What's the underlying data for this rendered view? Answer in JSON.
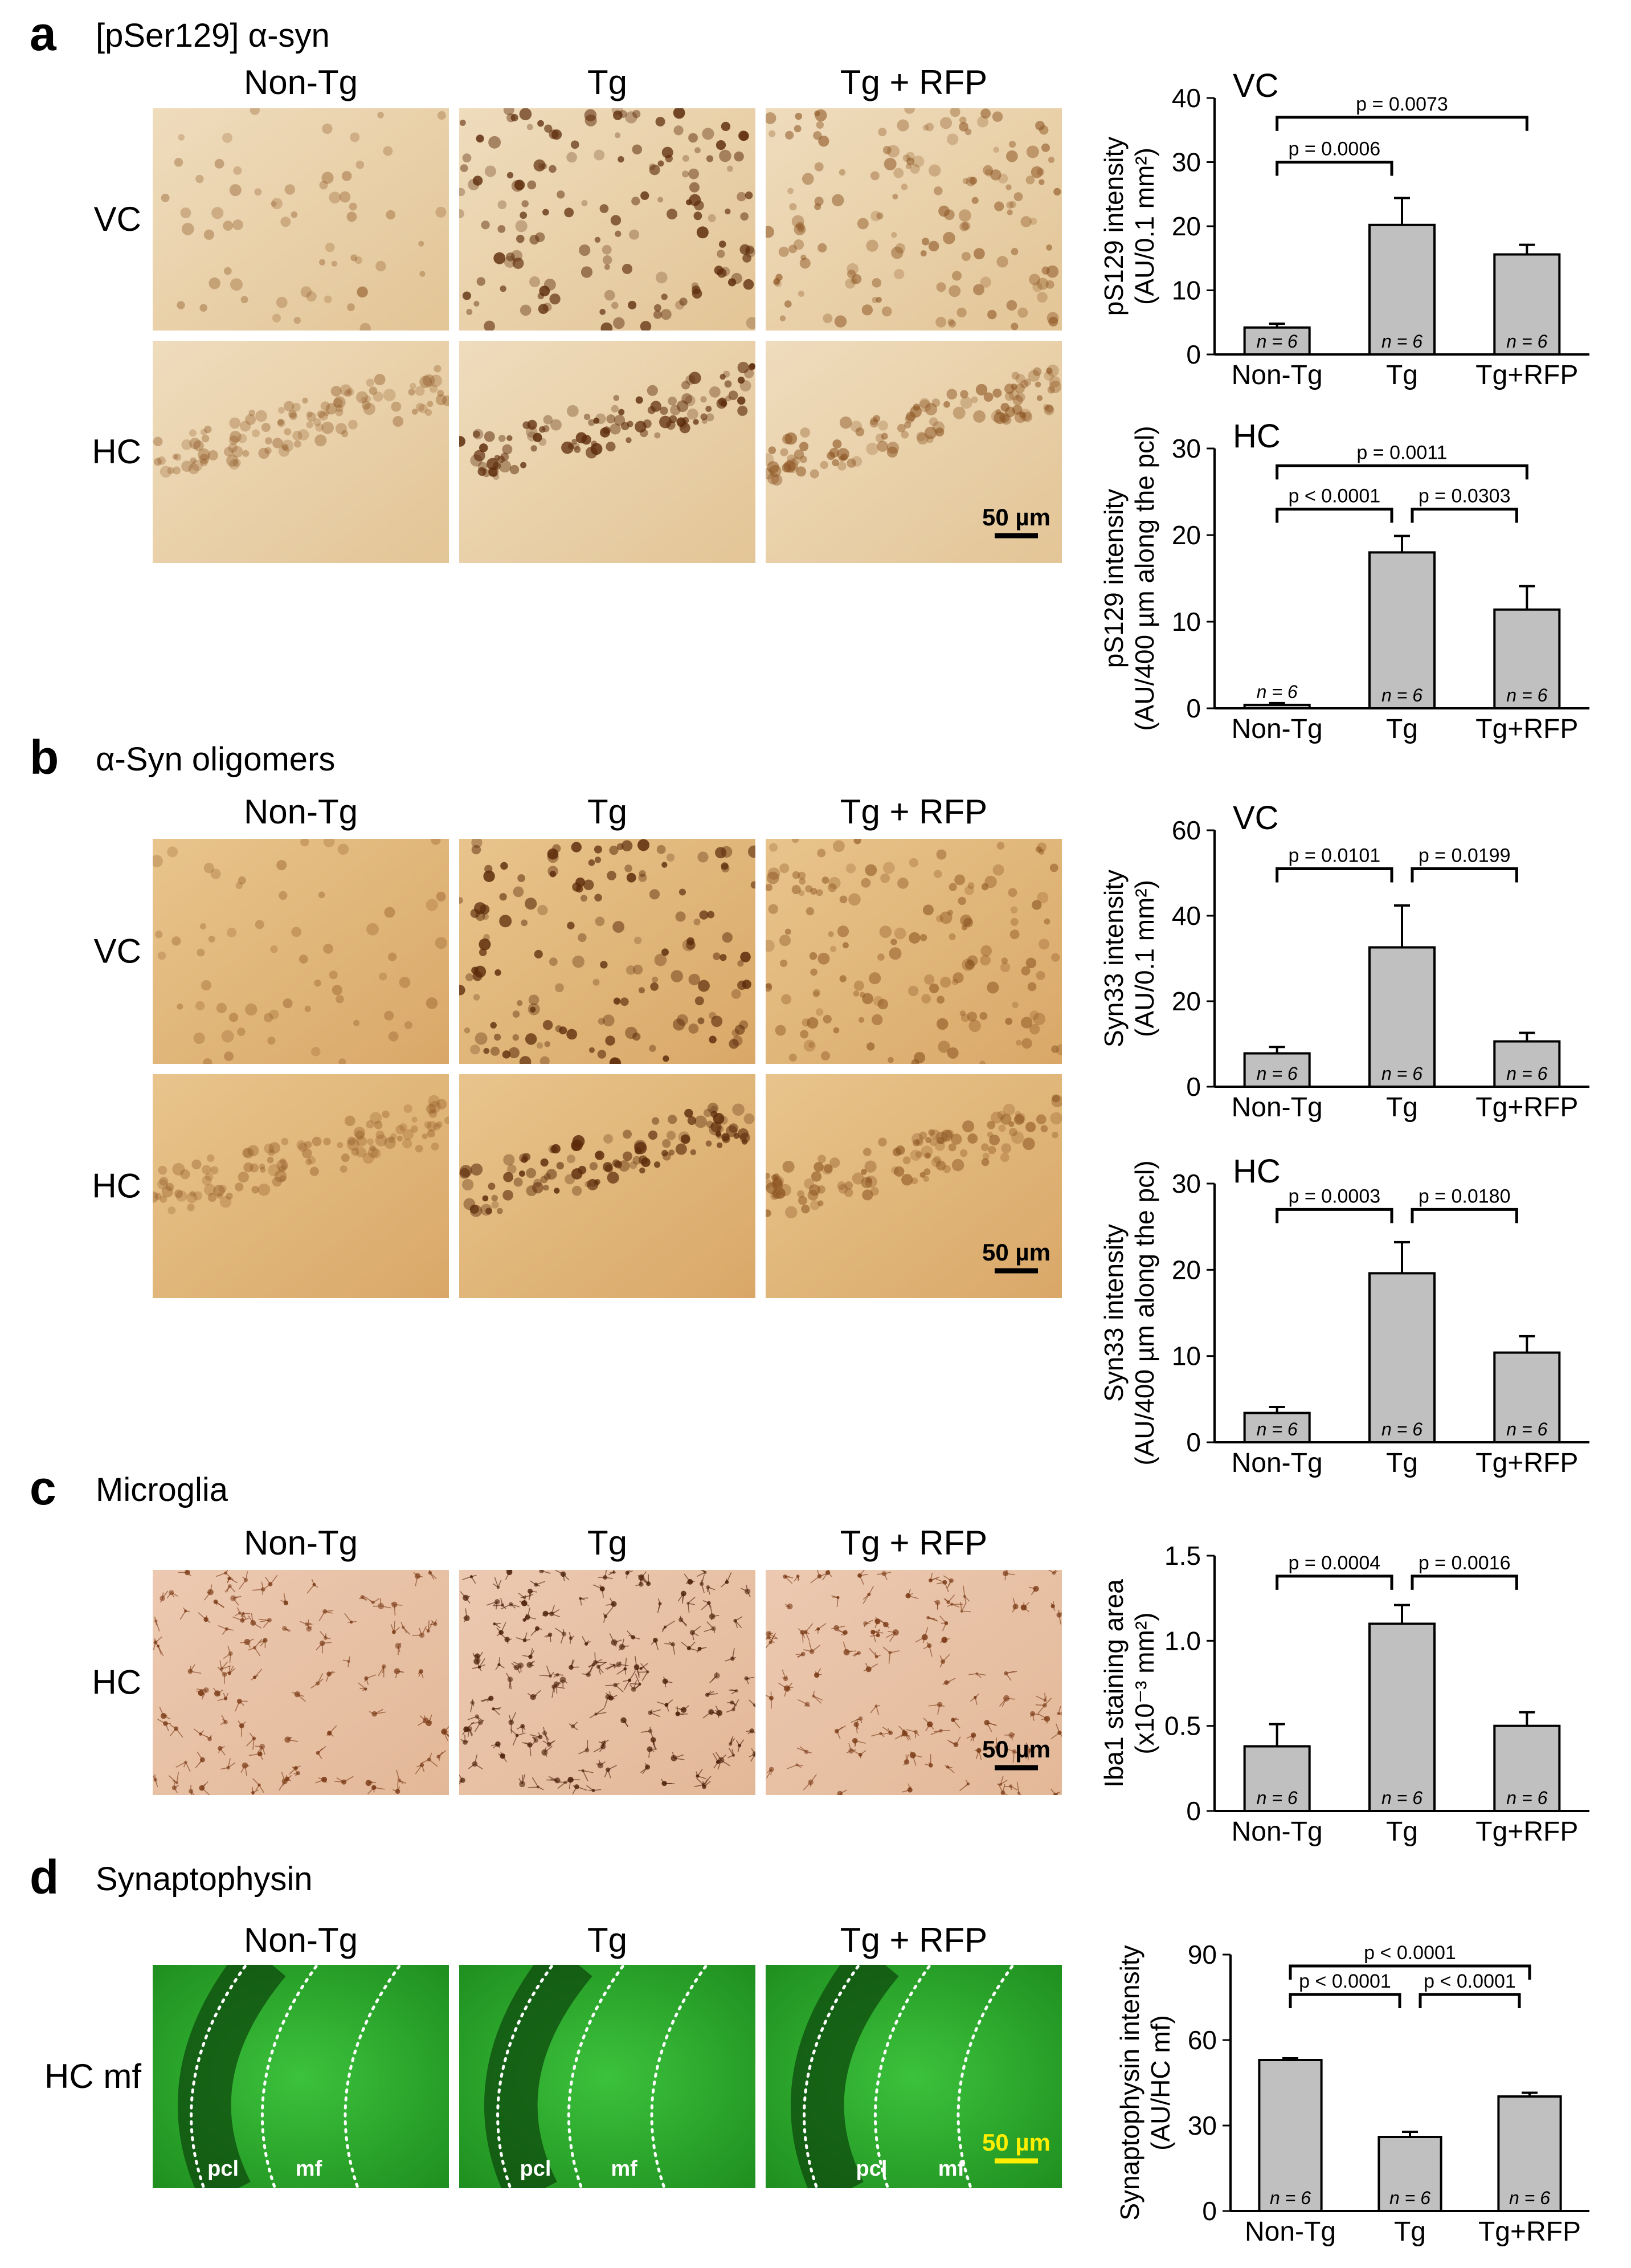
{
  "panels": [
    {
      "letter": "a",
      "title": "[pSer129] α-syn",
      "columns": [
        "Non-Tg",
        "Tg",
        "Tg + RFP"
      ],
      "rows": [
        "VC",
        "HC"
      ],
      "scale_bar": "50 µm",
      "tissue": "chromogen"
    },
    {
      "letter": "b",
      "title": "α-Syn oligomers",
      "columns": [
        "Non-Tg",
        "Tg",
        "Tg + RFP"
      ],
      "rows": [
        "VC",
        "HC"
      ],
      "scale_bar": "50 µm",
      "tissue": "chromogen"
    },
    {
      "letter": "c",
      "title": "Microglia",
      "columns": [
        "Non-Tg",
        "Tg",
        "Tg + RFP"
      ],
      "rows": [
        "HC"
      ],
      "scale_bar": "50 µm",
      "tissue": "microglia"
    },
    {
      "letter": "d",
      "title": "Synaptophysin",
      "columns": [
        "Non-Tg",
        "Tg",
        "Tg + RFP"
      ],
      "rows": [
        "HC mf"
      ],
      "scale_bar": "50 µm",
      "tissue": "fluorescence",
      "markers": [
        "pcl",
        "mf"
      ]
    }
  ],
  "colors": {
    "bar_fill": "#c0c0c0",
    "bar_stroke": "#000000",
    "fluorescence": "#2fae2f",
    "chromogen_stain": "#6b3a12",
    "tissue_background": "#e6c79a"
  },
  "chart_data": [
    {
      "type": "bar",
      "region": "VC",
      "categories": [
        "Non-Tg",
        "Tg",
        "Tg+RFP"
      ],
      "values": [
        4.2,
        20.2,
        15.6
      ],
      "errors": [
        0.6,
        4.2,
        1.5
      ],
      "n_labels": [
        "n = 6",
        "n = 6",
        "n = 6"
      ],
      "ylabel": [
        "pS129 intensity",
        "(AU/0.1 mm²)"
      ],
      "yticks": [
        0,
        10,
        20,
        30,
        40
      ],
      "ylim": [
        0,
        40
      ],
      "comparisons": [
        {
          "from": 0,
          "to": 1,
          "label": "p = 0.0006",
          "level": 30
        },
        {
          "from": 0,
          "to": 2,
          "label": "p = 0.0073",
          "level": 37
        }
      ]
    },
    {
      "type": "bar",
      "region": "HC",
      "categories": [
        "Non-Tg",
        "Tg",
        "Tg+RFP"
      ],
      "values": [
        0.4,
        18.0,
        11.4
      ],
      "errors": [
        0.2,
        1.9,
        2.7
      ],
      "n_labels": [
        "n = 6",
        "n = 6",
        "n = 6"
      ],
      "ylabel": [
        "pS129 intensity",
        "(AU/400 µm along the pcl)"
      ],
      "yticks": [
        0,
        10,
        20,
        30
      ],
      "ylim": [
        0,
        30
      ],
      "comparisons": [
        {
          "from": 0,
          "to": 1,
          "label": "p < 0.0001",
          "level": 23
        },
        {
          "from": 1,
          "to": 2,
          "label": "p = 0.0303",
          "level": 23
        },
        {
          "from": 0,
          "to": 2,
          "label": "p = 0.0011",
          "level": 28
        }
      ]
    },
    {
      "type": "bar",
      "region": "VC",
      "categories": [
        "Non-Tg",
        "Tg",
        "Tg+RFP"
      ],
      "values": [
        7.8,
        32.6,
        10.6
      ],
      "errors": [
        1.5,
        9.8,
        2.0
      ],
      "n_labels": [
        "n = 6",
        "n = 6",
        "n = 6"
      ],
      "ylabel": [
        "Syn33 intensity",
        "(AU/0.1 mm²)"
      ],
      "yticks": [
        0,
        20,
        40,
        60
      ],
      "ylim": [
        0,
        60
      ],
      "comparisons": [
        {
          "from": 0,
          "to": 1,
          "label": "p = 0.0101",
          "level": 51
        },
        {
          "from": 1,
          "to": 2,
          "label": "p = 0.0199",
          "level": 51
        }
      ]
    },
    {
      "type": "bar",
      "region": "HC",
      "categories": [
        "Non-Tg",
        "Tg",
        "Tg+RFP"
      ],
      "values": [
        3.4,
        19.6,
        10.4
      ],
      "errors": [
        0.7,
        3.6,
        1.9
      ],
      "n_labels": [
        "n = 6",
        "n = 6",
        "n = 6"
      ],
      "ylabel": [
        "Syn33 intensity",
        "(AU/400 µm along the pcl)"
      ],
      "yticks": [
        0,
        10,
        20,
        30
      ],
      "ylim": [
        0,
        30
      ],
      "comparisons": [
        {
          "from": 0,
          "to": 1,
          "label": "p = 0.0003",
          "level": 27
        },
        {
          "from": 1,
          "to": 2,
          "label": "p = 0.0180",
          "level": 27
        }
      ]
    },
    {
      "type": "bar",
      "region": "",
      "categories": [
        "Non-Tg",
        "Tg",
        "Tg+RFP"
      ],
      "values": [
        0.38,
        1.1,
        0.5
      ],
      "errors": [
        0.13,
        0.11,
        0.08
      ],
      "n_labels": [
        "n = 6",
        "n = 6",
        "n = 6"
      ],
      "ylabel": [
        "Iba1 staining area",
        "(x10⁻³ mm²)"
      ],
      "yticks": [
        "0",
        "0.5",
        "1.0",
        "1.5"
      ],
      "ylim": [
        0,
        1.5
      ],
      "comparisons": [
        {
          "from": 0,
          "to": 1,
          "label": "p = 0.0004",
          "level": 1.38
        },
        {
          "from": 1,
          "to": 2,
          "label": "p = 0.0016",
          "level": 1.38
        }
      ]
    },
    {
      "type": "bar",
      "region": "",
      "categories": [
        "Non-Tg",
        "Tg",
        "Tg+RFP"
      ],
      "values": [
        53.0,
        26.0,
        40.2
      ],
      "errors": [
        0.6,
        1.8,
        1.3
      ],
      "n_labels": [
        "n = 6",
        "n = 6",
        "n = 6"
      ],
      "ylabel": [
        "Synaptophysin intensity",
        "(AU/HC mf)"
      ],
      "yticks": [
        0,
        30,
        60,
        90
      ],
      "ylim": [
        0,
        90
      ],
      "comparisons": [
        {
          "from": 0,
          "to": 1,
          "label": "p < 0.0001",
          "level": 76
        },
        {
          "from": 1,
          "to": 2,
          "label": "p < 0.0001",
          "level": 76
        },
        {
          "from": 0,
          "to": 2,
          "label": "p < 0.0001",
          "level": 86
        }
      ]
    }
  ]
}
